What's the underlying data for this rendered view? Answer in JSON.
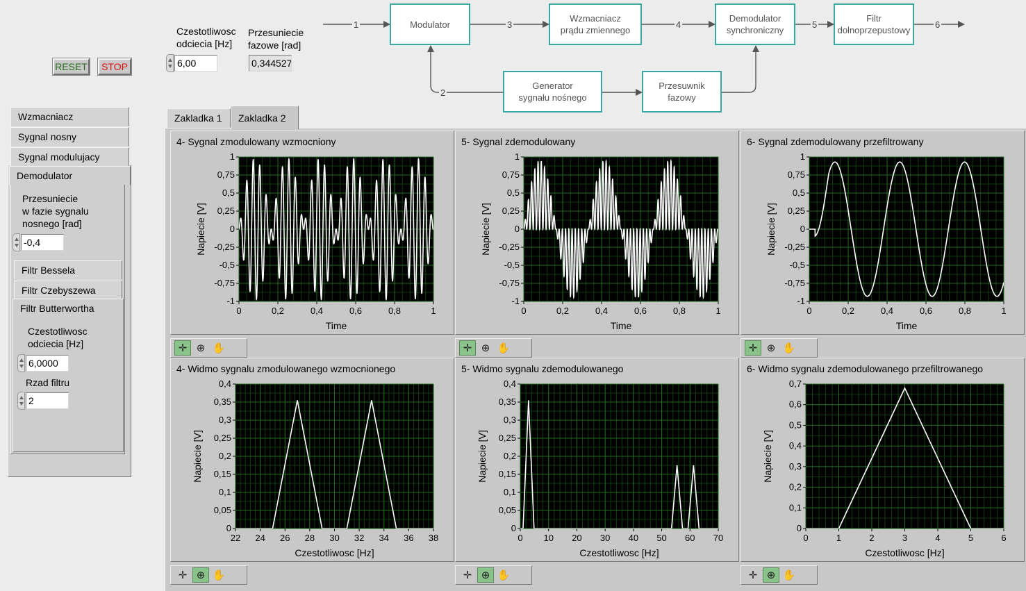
{
  "buttons": {
    "reset": "RESET",
    "stop": "STOP"
  },
  "controls": {
    "cutoff": {
      "label_line1": "Czestotliwosc",
      "label_line2": "odciecia [Hz]",
      "value": "6,00"
    },
    "phase_shift": {
      "label_line1": "Przesuniecie",
      "label_line2": "fazowe [rad]",
      "value": "0,344527"
    }
  },
  "diagram": {
    "blocks": {
      "modulator": "Modulator",
      "amplifier": [
        "Wzmacniacz",
        "prądu zmiennego"
      ],
      "demodulator": [
        "Demodulator",
        "synchroniczny"
      ],
      "lowpass": [
        "Filtr",
        "dolnoprzepustowy"
      ],
      "generator": [
        "Generator",
        "sygnału nośnego"
      ],
      "phase_shifter": [
        "Przesuwnik",
        "fazowy"
      ]
    },
    "arrow_labels": [
      "1",
      "3",
      "4",
      "5",
      "6",
      "2"
    ],
    "colors": {
      "block_border": "#3ba7a3",
      "arrow": "#555555"
    }
  },
  "sidebar": {
    "tabs": [
      "Wzmacniacz",
      "Sygnal nosny",
      "Sygnal modulujacy",
      "Demodulator"
    ],
    "demodulator": {
      "phase_label": [
        "Przesuniecie",
        "w fazie sygnalu",
        "nosnego [rad]"
      ],
      "phase_value": "-0,4",
      "filter_tabs": [
        "Filtr Bessela",
        "Filtr Czebyszewa",
        "Filtr Butterwortha"
      ],
      "butterworth": {
        "cutoff_label": [
          "Czestotliwosc",
          "odciecia [Hz]"
        ],
        "cutoff_value": "6,0000",
        "order_label": "Rzad filtru",
        "order_value": "2"
      }
    }
  },
  "main_tabs": [
    "Zakladka 1",
    "Zakladka 2"
  ],
  "active_main_tab": "Zakladka 2",
  "graph_tools": {
    "cursor": "cursor-cross-icon",
    "zoom": "zoom-icon",
    "pan": "hand-pan-icon"
  },
  "colors": {
    "plot_bg": "#000000",
    "grid": "#1f6b1f",
    "trace": "#ffffff",
    "panel": "#c8c8c8"
  },
  "chart_data": [
    {
      "type": "line",
      "title": "4- Sygnal zmodulowany wzmocniony",
      "xlabel": "Time",
      "ylabel": "Napiecie [V]",
      "xlim": [
        0,
        1
      ],
      "ylim": [
        -1,
        1
      ],
      "xticks": [
        "0",
        "0,2",
        "0,4",
        "0,6",
        "0,8",
        "1"
      ],
      "yticks": [
        "1",
        "0,75",
        "0,5",
        "0,25",
        "0",
        "-0,25",
        "-0,5",
        "-0,75",
        "-1"
      ],
      "series": [
        {
          "kind": "am",
          "carrier_hz": 30,
          "modulating_hz": 3,
          "amplitude": 1.0
        }
      ]
    },
    {
      "type": "line",
      "title": "5- Sygnal zdemodulowany",
      "xlabel": "Time",
      "ylabel": "Napiecie [V]",
      "xlim": [
        0,
        1
      ],
      "ylim": [
        -1,
        1
      ],
      "xticks": [
        "0",
        "0,2",
        "0,4",
        "0,6",
        "0,8",
        "1"
      ],
      "yticks": [
        "1",
        "0,75",
        "0,5",
        "0,25",
        "0",
        "-0,25",
        "-0,5",
        "-0,75",
        "-1"
      ],
      "series": [
        {
          "kind": "demod",
          "carrier_hz": 30,
          "modulating_hz": 3,
          "amplitude": 0.95
        }
      ]
    },
    {
      "type": "line",
      "title": "6- Sygnal zdemodulowany przefiltrowany",
      "xlabel": "Time",
      "ylabel": "Napiecie [V]",
      "xlim": [
        0,
        1
      ],
      "ylim": [
        -1,
        1
      ],
      "xticks": [
        "0",
        "0,2",
        "0,4",
        "0,6",
        "0,8",
        "1"
      ],
      "yticks": [
        "1",
        "0,75",
        "0,5",
        "0,25",
        "0",
        "-0,25",
        "-0,5",
        "-0,75",
        "-1"
      ],
      "series": [
        {
          "kind": "filtered",
          "frequency_hz": 3,
          "amplitude": 0.93,
          "start_delay": 0.03
        }
      ]
    },
    {
      "type": "line",
      "title": "4- Widmo sygnalu zmodulowanego wzmocnionego",
      "xlabel": "Czestotliwosc [Hz]",
      "ylabel": "Napiecie [V]",
      "xlim": [
        22,
        38
      ],
      "ylim": [
        0,
        0.4
      ],
      "xticks": [
        "22",
        "24",
        "26",
        "28",
        "30",
        "32",
        "34",
        "36",
        "38"
      ],
      "yticks": [
        "0,4",
        "0,35",
        "0,3",
        "0,25",
        "0,2",
        "0,15",
        "0,1",
        "0,05",
        "0"
      ],
      "series": [
        {
          "x": [
            22,
            25,
            27,
            29,
            31,
            33,
            35,
            38
          ],
          "y": [
            0,
            0,
            0.355,
            0,
            0,
            0.355,
            0,
            0
          ]
        }
      ]
    },
    {
      "type": "line",
      "title": "5- Widmo sygnalu zdemodulowanego",
      "xlabel": "Czestotliwosc [Hz]",
      "ylabel": "Napiecie [V]",
      "xlim": [
        0,
        72
      ],
      "ylim": [
        0,
        0.4
      ],
      "xticks": [
        "0",
        "10",
        "20",
        "30",
        "40",
        "50",
        "60",
        "70"
      ],
      "yticks": [
        "0,4",
        "0,35",
        "0,3",
        "0,25",
        "0,2",
        "0,15",
        "0,1",
        "0,05",
        "0"
      ],
      "series": [
        {
          "x": [
            0,
            1,
            3,
            5,
            55,
            57,
            59,
            61,
            63,
            65,
            72
          ],
          "y": [
            0,
            0,
            0.355,
            0,
            0,
            0.175,
            0,
            0,
            0.175,
            0,
            0
          ]
        }
      ]
    },
    {
      "type": "line",
      "title": "6- Widmo sygnalu zdemodulowanego przefiltrowanego",
      "xlabel": "Czestotliwosc [Hz]",
      "ylabel": "Napiecie [V]",
      "xlim": [
        0,
        6
      ],
      "ylim": [
        0,
        0.7
      ],
      "xticks": [
        "0",
        "1",
        "2",
        "3",
        "4",
        "5",
        "6"
      ],
      "yticks": [
        "0,7",
        "0,6",
        "0,5",
        "0,4",
        "0,3",
        "0,2",
        "0,1",
        "0"
      ],
      "series": [
        {
          "x": [
            0,
            1,
            3,
            5,
            6
          ],
          "y": [
            0,
            0,
            0.68,
            0,
            0
          ]
        }
      ]
    }
  ]
}
